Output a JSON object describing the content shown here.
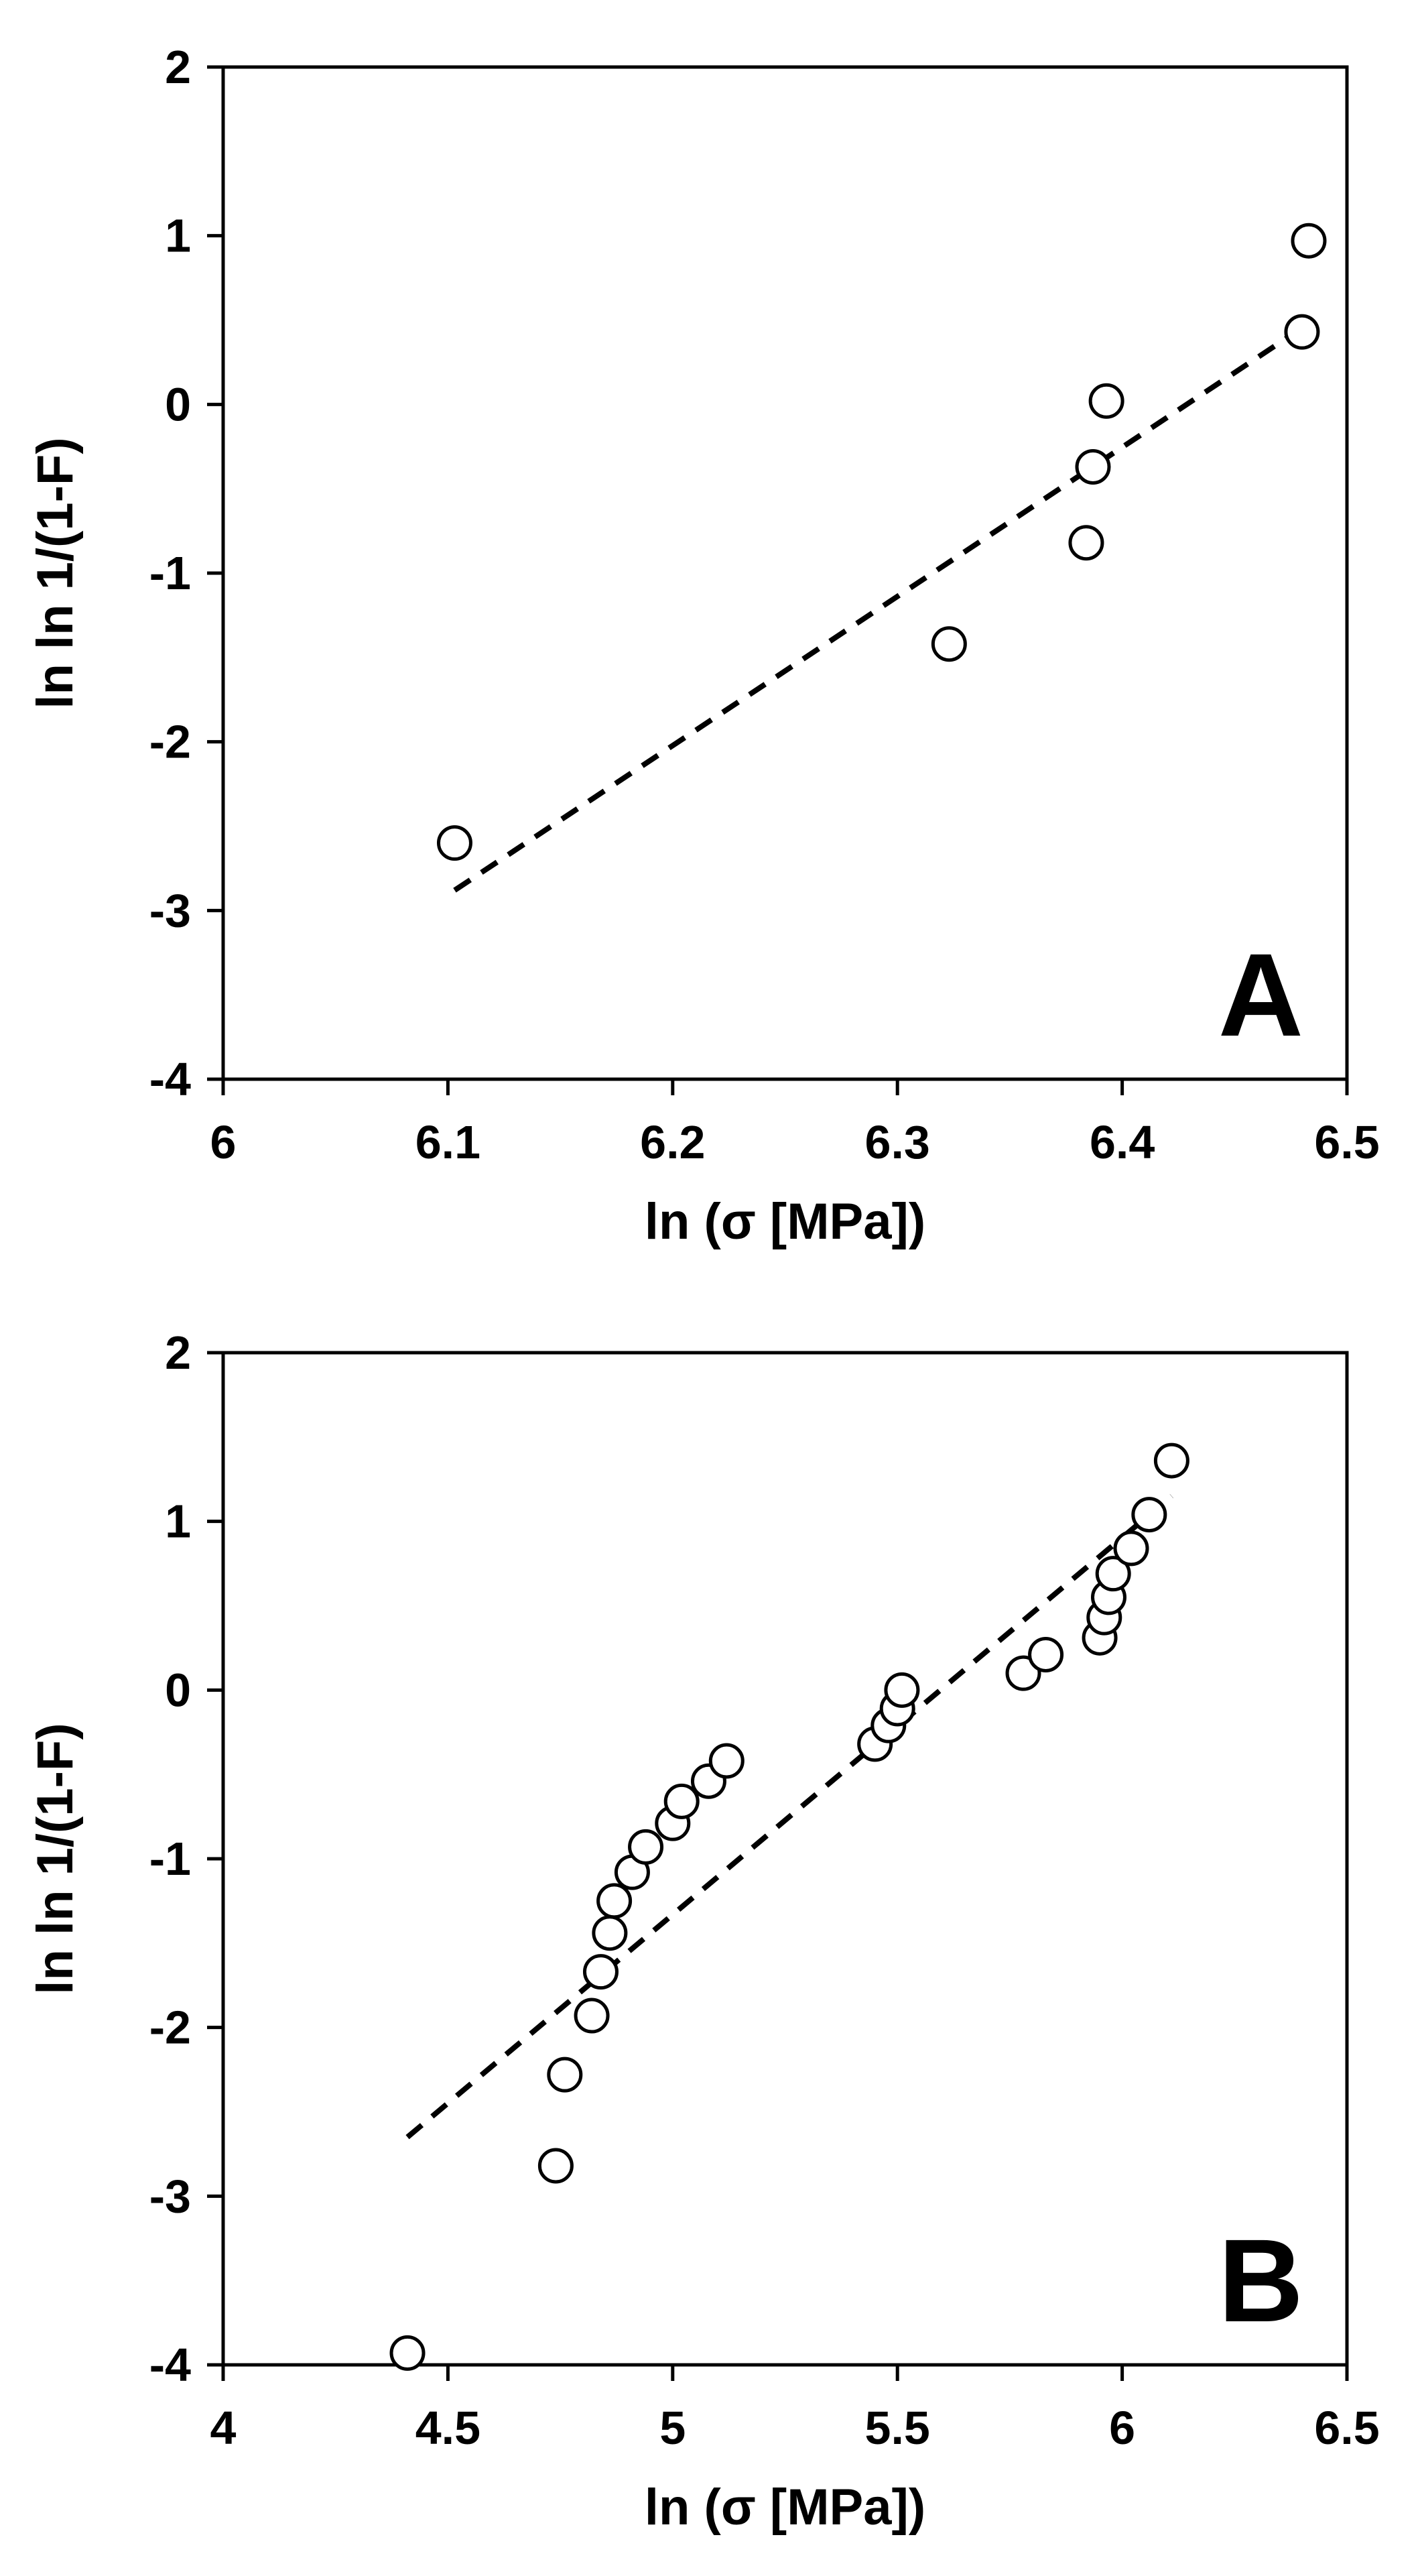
{
  "chart_data": [
    {
      "type": "scatter",
      "panel_label": "A",
      "xlabel": "ln (σ [MPa])",
      "ylabel": "ln ln 1/(1-F)",
      "xlim": [
        6,
        6.5
      ],
      "ylim": [
        -4,
        2
      ],
      "x_ticks": [
        6,
        6.1,
        6.2,
        6.3,
        6.4,
        6.5
      ],
      "x_tick_labels": [
        "6",
        "6.1",
        "6.2",
        "6.3",
        "6.4",
        "6.5"
      ],
      "y_ticks": [
        -4,
        -3,
        -2,
        -1,
        0,
        1,
        2
      ],
      "y_tick_labels": [
        "-4",
        "-3",
        "-2",
        "-1",
        "0",
        "1",
        "2"
      ],
      "grid": false,
      "marker": "open-circle",
      "points": [
        {
          "x": 6.103,
          "y": -2.6
        },
        {
          "x": 6.323,
          "y": -1.42
        },
        {
          "x": 6.384,
          "y": -0.82
        },
        {
          "x": 6.387,
          "y": -0.37
        },
        {
          "x": 6.393,
          "y": 0.02
        },
        {
          "x": 6.48,
          "y": 0.43
        },
        {
          "x": 6.483,
          "y": 0.97
        }
      ],
      "fit_line": {
        "style": "dashed",
        "x": [
          6.103,
          6.483
        ],
        "y": [
          -2.88,
          0.48
        ]
      }
    },
    {
      "type": "scatter",
      "panel_label": "B",
      "xlabel": "ln (σ [MPa])",
      "ylabel": "ln ln 1/(1-F)",
      "xlim": [
        4,
        6.5
      ],
      "ylim": [
        -4,
        2
      ],
      "x_ticks": [
        4,
        4.5,
        5,
        5.5,
        6,
        6.5
      ],
      "x_tick_labels": [
        "4",
        "4.5",
        "5",
        "5.5",
        "6",
        "6.5"
      ],
      "y_ticks": [
        -4,
        -3,
        -2,
        -1,
        0,
        1,
        2
      ],
      "y_tick_labels": [
        "-4",
        "-3",
        "-2",
        "-1",
        "0",
        "1",
        "2"
      ],
      "grid": false,
      "marker": "open-circle",
      "points": [
        {
          "x": 4.41,
          "y": -3.93
        },
        {
          "x": 4.74,
          "y": -2.82
        },
        {
          "x": 4.76,
          "y": -2.28
        },
        {
          "x": 4.82,
          "y": -1.93
        },
        {
          "x": 4.84,
          "y": -1.67
        },
        {
          "x": 4.86,
          "y": -1.44
        },
        {
          "x": 4.87,
          "y": -1.25
        },
        {
          "x": 4.91,
          "y": -1.08
        },
        {
          "x": 4.94,
          "y": -0.93
        },
        {
          "x": 5.0,
          "y": -0.79
        },
        {
          "x": 5.02,
          "y": -0.66
        },
        {
          "x": 5.08,
          "y": -0.54
        },
        {
          "x": 5.12,
          "y": -0.42
        },
        {
          "x": 5.45,
          "y": -0.32
        },
        {
          "x": 5.48,
          "y": -0.21
        },
        {
          "x": 5.5,
          "y": -0.11
        },
        {
          "x": 5.51,
          "y": 0.0
        },
        {
          "x": 5.78,
          "y": 0.1
        },
        {
          "x": 5.83,
          "y": 0.21
        },
        {
          "x": 5.95,
          "y": 0.31
        },
        {
          "x": 5.96,
          "y": 0.43
        },
        {
          "x": 5.97,
          "y": 0.55
        },
        {
          "x": 5.98,
          "y": 0.69
        },
        {
          "x": 6.02,
          "y": 0.84
        },
        {
          "x": 6.06,
          "y": 1.04
        },
        {
          "x": 6.11,
          "y": 1.36
        }
      ],
      "fit_line": {
        "style": "dashed",
        "x": [
          4.41,
          6.11
        ],
        "y": [
          -2.65,
          1.15
        ]
      }
    }
  ]
}
